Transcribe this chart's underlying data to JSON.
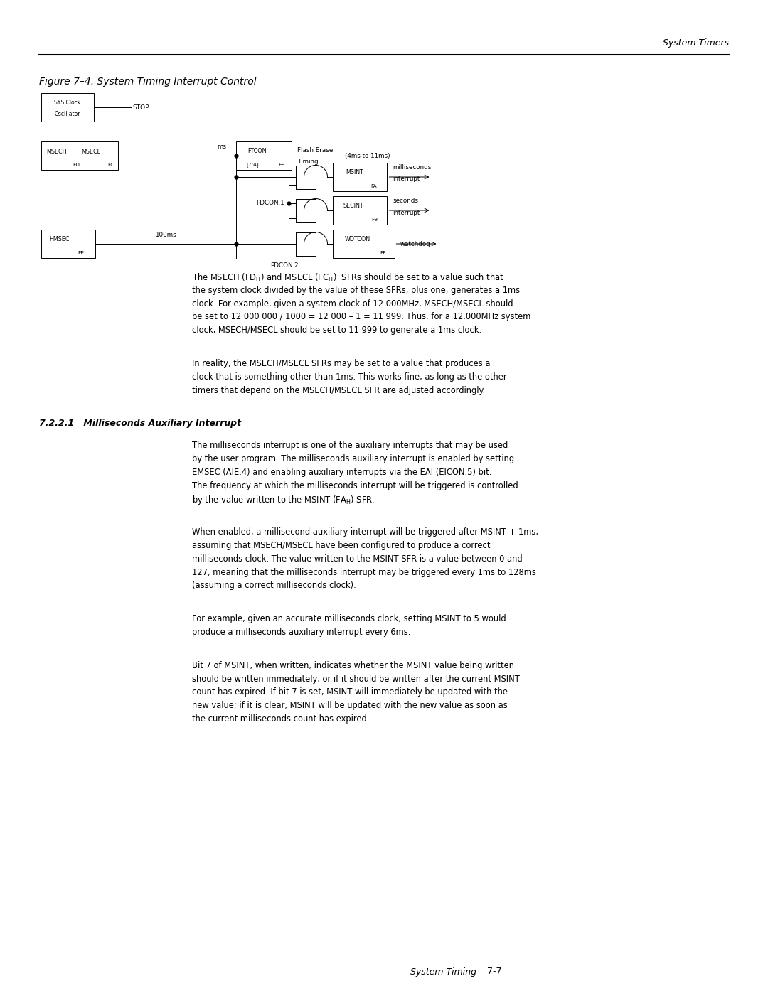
{
  "page_width": 10.8,
  "page_height": 13.97,
  "bg_color": "#ffffff",
  "header_text": "System Timers",
  "footer_left": "System Timing",
  "footer_right": "7-7",
  "figure_title": "Figure 7–4. System Timing Interrupt Control"
}
